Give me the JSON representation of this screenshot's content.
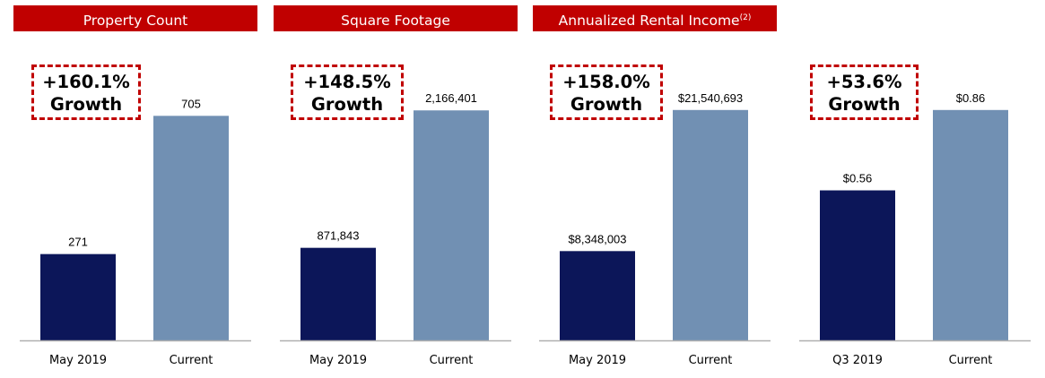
{
  "colors": {
    "header_bg": "#c00000",
    "before_bar": "#0c1659",
    "current_bar": "#7190b3",
    "axis": "#b0b0b0",
    "badge_border": "#c00000"
  },
  "chart_data": [
    {
      "type": "bar",
      "title": "Property Count",
      "title_footnote": "",
      "categories": [
        "May 2019",
        "Current"
      ],
      "values": [
        271,
        705
      ],
      "value_labels": [
        "271",
        "705"
      ],
      "ylim": [
        0,
        900
      ],
      "badge": {
        "line1": "+160.1%",
        "line2": "Growth"
      }
    },
    {
      "type": "bar",
      "title": "Square Footage",
      "title_footnote": "",
      "categories": [
        "May 2019",
        "Current"
      ],
      "values": [
        871843,
        2166401
      ],
      "value_labels": [
        "871,843",
        "2,166,401"
      ],
      "ylim": [
        0,
        2700000
      ],
      "badge": {
        "line1": "+148.5%",
        "line2": "Growth"
      }
    },
    {
      "type": "bar",
      "title": "Annualized Rental Income",
      "title_footnote": "(2)",
      "categories": [
        "May 2019",
        "Current"
      ],
      "values": [
        8348003,
        21540693
      ],
      "value_labels": [
        "$8,348,003",
        "$21,540,693"
      ],
      "ylim": [
        0,
        26800000
      ],
      "badge": {
        "line1": "+158.0%",
        "line2": "Growth"
      }
    },
    {
      "type": "bar",
      "title": "",
      "title_footnote": "",
      "categories": [
        "Q3 2019",
        "Current"
      ],
      "values": [
        0.56,
        0.86
      ],
      "value_labels": [
        "$0.56",
        "$0.86"
      ],
      "ylim": [
        0,
        1.07
      ],
      "badge": {
        "line1": "+53.6%",
        "line2": "Growth"
      }
    }
  ]
}
